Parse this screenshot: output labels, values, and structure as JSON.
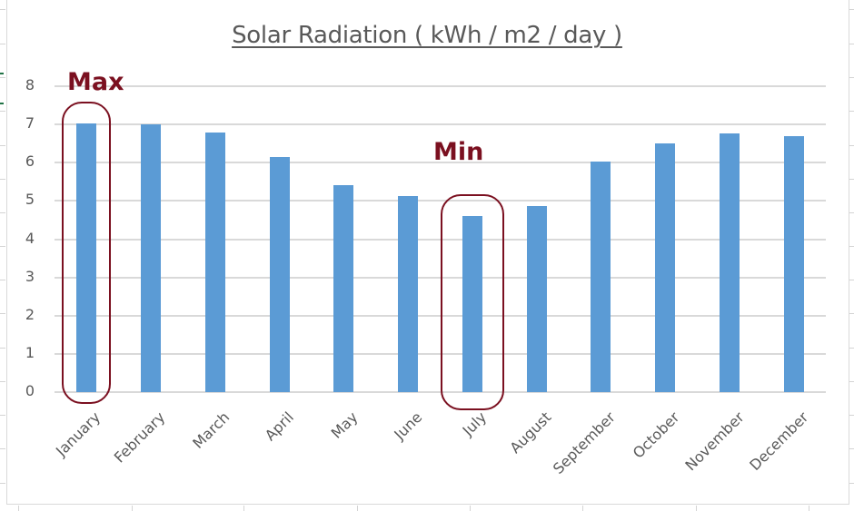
{
  "chart_data": {
    "type": "bar",
    "title": "Solar Radiation ( kWh / m2 / day )",
    "xlabel": "",
    "ylabel": "",
    "categories": [
      "January",
      "February",
      "March",
      "April",
      "May",
      "June",
      "July",
      "August",
      "September",
      "October",
      "November",
      "December"
    ],
    "values": [
      7.03,
      7.0,
      6.8,
      6.15,
      5.42,
      5.12,
      4.6,
      4.86,
      6.03,
      6.5,
      6.77,
      6.7
    ],
    "ylim": [
      0,
      8
    ],
    "yticks": [
      0,
      1,
      2,
      3,
      4,
      5,
      6,
      7,
      8
    ],
    "grid": true,
    "legend": null,
    "bar_color": "#5b9bd5",
    "annotations": [
      {
        "label": "Max",
        "category": "January",
        "color": "#7b1020"
      },
      {
        "label": "Min",
        "category": "July",
        "color": "#7b1020"
      }
    ]
  },
  "colors": {
    "bar": "#5b9bd5",
    "annotation": "#7b1020",
    "gridline": "#d9d9d9",
    "text": "#595959"
  }
}
